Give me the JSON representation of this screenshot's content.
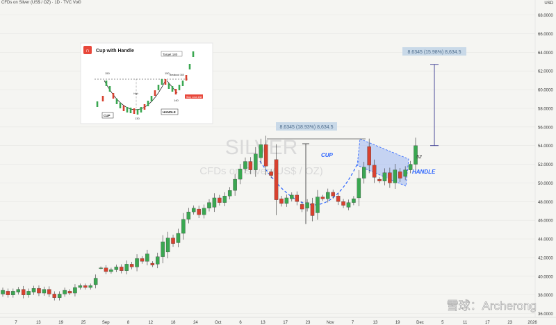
{
  "header": {
    "symbol_line": "CFDs on Silver (US$ / OZ) · 1D · TVC  Vol0",
    "currency": "USD"
  },
  "watermark": {
    "ticker": "SILVER",
    "description": "CFDs on Silver (US$ / OZ)"
  },
  "chart_data": {
    "type": "candlestick",
    "title": "CFDs on Silver (US$ / OZ) · 1D · TVC",
    "y_axis": {
      "ticks": [
        36,
        38,
        40,
        42,
        44,
        46,
        48,
        50,
        52,
        54,
        56,
        58,
        60,
        62,
        64,
        66,
        68
      ],
      "ylim": [
        35.6,
        69.6
      ],
      "suffix": ".0000"
    },
    "x_axis": {
      "tick_labels": [
        "7",
        "13",
        "19",
        "25",
        "Sep",
        "8",
        "12",
        "18",
        "24",
        "Oct",
        "6",
        "13",
        "17",
        "23",
        "Nov",
        "7",
        "13",
        "19",
        "Dec",
        "5",
        "11",
        "17",
        "23",
        "2026"
      ]
    },
    "candles": [
      [
        38.1,
        38.5
      ],
      [
        38.4,
        38.0
      ],
      [
        38.0,
        38.4
      ],
      [
        38.3,
        38.6
      ],
      [
        38.6,
        38.0
      ],
      [
        38.0,
        38.4
      ],
      [
        38.3,
        38.7
      ],
      [
        38.7,
        38.2
      ],
      [
        38.2,
        38.6
      ],
      [
        38.6,
        38.1
      ],
      [
        38.1,
        37.7
      ],
      [
        37.7,
        38.1
      ],
      [
        38.1,
        38.5
      ],
      [
        38.4,
        38.2
      ],
      [
        38.2,
        38.8
      ],
      [
        38.8,
        39.0
      ],
      [
        39.0,
        38.8
      ],
      [
        38.8,
        39.0
      ],
      [
        39.1,
        39.8
      ],
      [
        40.9,
        40.9
      ],
      [
        40.9,
        40.5
      ],
      [
        40.5,
        40.7
      ],
      [
        40.7,
        41.0
      ],
      [
        41.0,
        40.6
      ],
      [
        40.6,
        41.3
      ],
      [
        41.3,
        41.0
      ],
      [
        41.0,
        41.9
      ],
      [
        41.9,
        41.6
      ],
      [
        41.6,
        42.4
      ],
      [
        41.4,
        41.2
      ],
      [
        41.3,
        42.1
      ],
      [
        42.1,
        43.7
      ],
      [
        42.6,
        44.1
      ],
      [
        44.1,
        43.5
      ],
      [
        43.6,
        44.6
      ],
      [
        44.6,
        46.1
      ],
      [
        46.1,
        46.9
      ],
      [
        46.9,
        47.3
      ],
      [
        47.2,
        46.6
      ],
      [
        46.6,
        47.3
      ],
      [
        47.3,
        47.9
      ],
      [
        47.4,
        48.4
      ],
      [
        48.4,
        47.9
      ],
      [
        47.9,
        48.6
      ],
      [
        48.6,
        49.2
      ],
      [
        49.2,
        50.4
      ],
      [
        50.4,
        51.5
      ],
      [
        51.5,
        52.3
      ],
      [
        52.3,
        51.4
      ],
      [
        51.4,
        53.1
      ],
      [
        52.7,
        54.1
      ],
      [
        54.1,
        51.8
      ],
      [
        51.2,
        50.8
      ],
      [
        52.5,
        48.2
      ],
      [
        48.3,
        47.8
      ],
      [
        47.8,
        48.4
      ],
      [
        48.3,
        48.7
      ],
      [
        48.7,
        48.0
      ],
      [
        47.7,
        47.2
      ],
      [
        47.3,
        47.9
      ],
      [
        47.8,
        46.5
      ],
      [
        46.8,
        48.5
      ],
      [
        48.5,
        48.3
      ],
      [
        48.3,
        49.0
      ],
      [
        49.0,
        48.6
      ],
      [
        48.6,
        48.0
      ],
      [
        48.0,
        47.6
      ],
      [
        47.4,
        47.9
      ],
      [
        47.9,
        48.3
      ],
      [
        48.4,
        50.5
      ],
      [
        50.5,
        51.7
      ],
      [
        53.9,
        51.9
      ],
      [
        51.9,
        50.6
      ],
      [
        50.4,
        50.2
      ],
      [
        50.2,
        51.1
      ],
      [
        51.1,
        50.0
      ],
      [
        50.0,
        51.4
      ],
      [
        51.2,
        50.5
      ],
      [
        50.7,
        51.4
      ],
      [
        51.4,
        52.0
      ],
      [
        52.0,
        54.0
      ]
    ],
    "annotations": {
      "pattern_labels": [
        "CUP",
        "HANDLE"
      ],
      "handle_level_label": "52",
      "measure_1": {
        "text": "8.6345 (18.93%) 8,634.5",
        "from": 45.6,
        "to": 54.2
      },
      "measure_2": {
        "text": "8.6345 (15.98%) 8,634.5",
        "from": 54.0,
        "to": 62.7
      },
      "rim_level": 53.9
    },
    "inset": {
      "title": "Cup with Handle",
      "labels": [
        "Target 180",
        "Breakout 160",
        "Stop Loss 138",
        "150",
        "150",
        "140",
        "130",
        "High",
        "CUP",
        "HANDLE"
      ]
    }
  },
  "brand_watermark": "雪球：Archerong",
  "colors": {
    "up": "#3aa751",
    "down": "#d8412f",
    "accent": "#2962ff",
    "annotation": "#4b4b9b",
    "background": "#f5f5f2"
  }
}
